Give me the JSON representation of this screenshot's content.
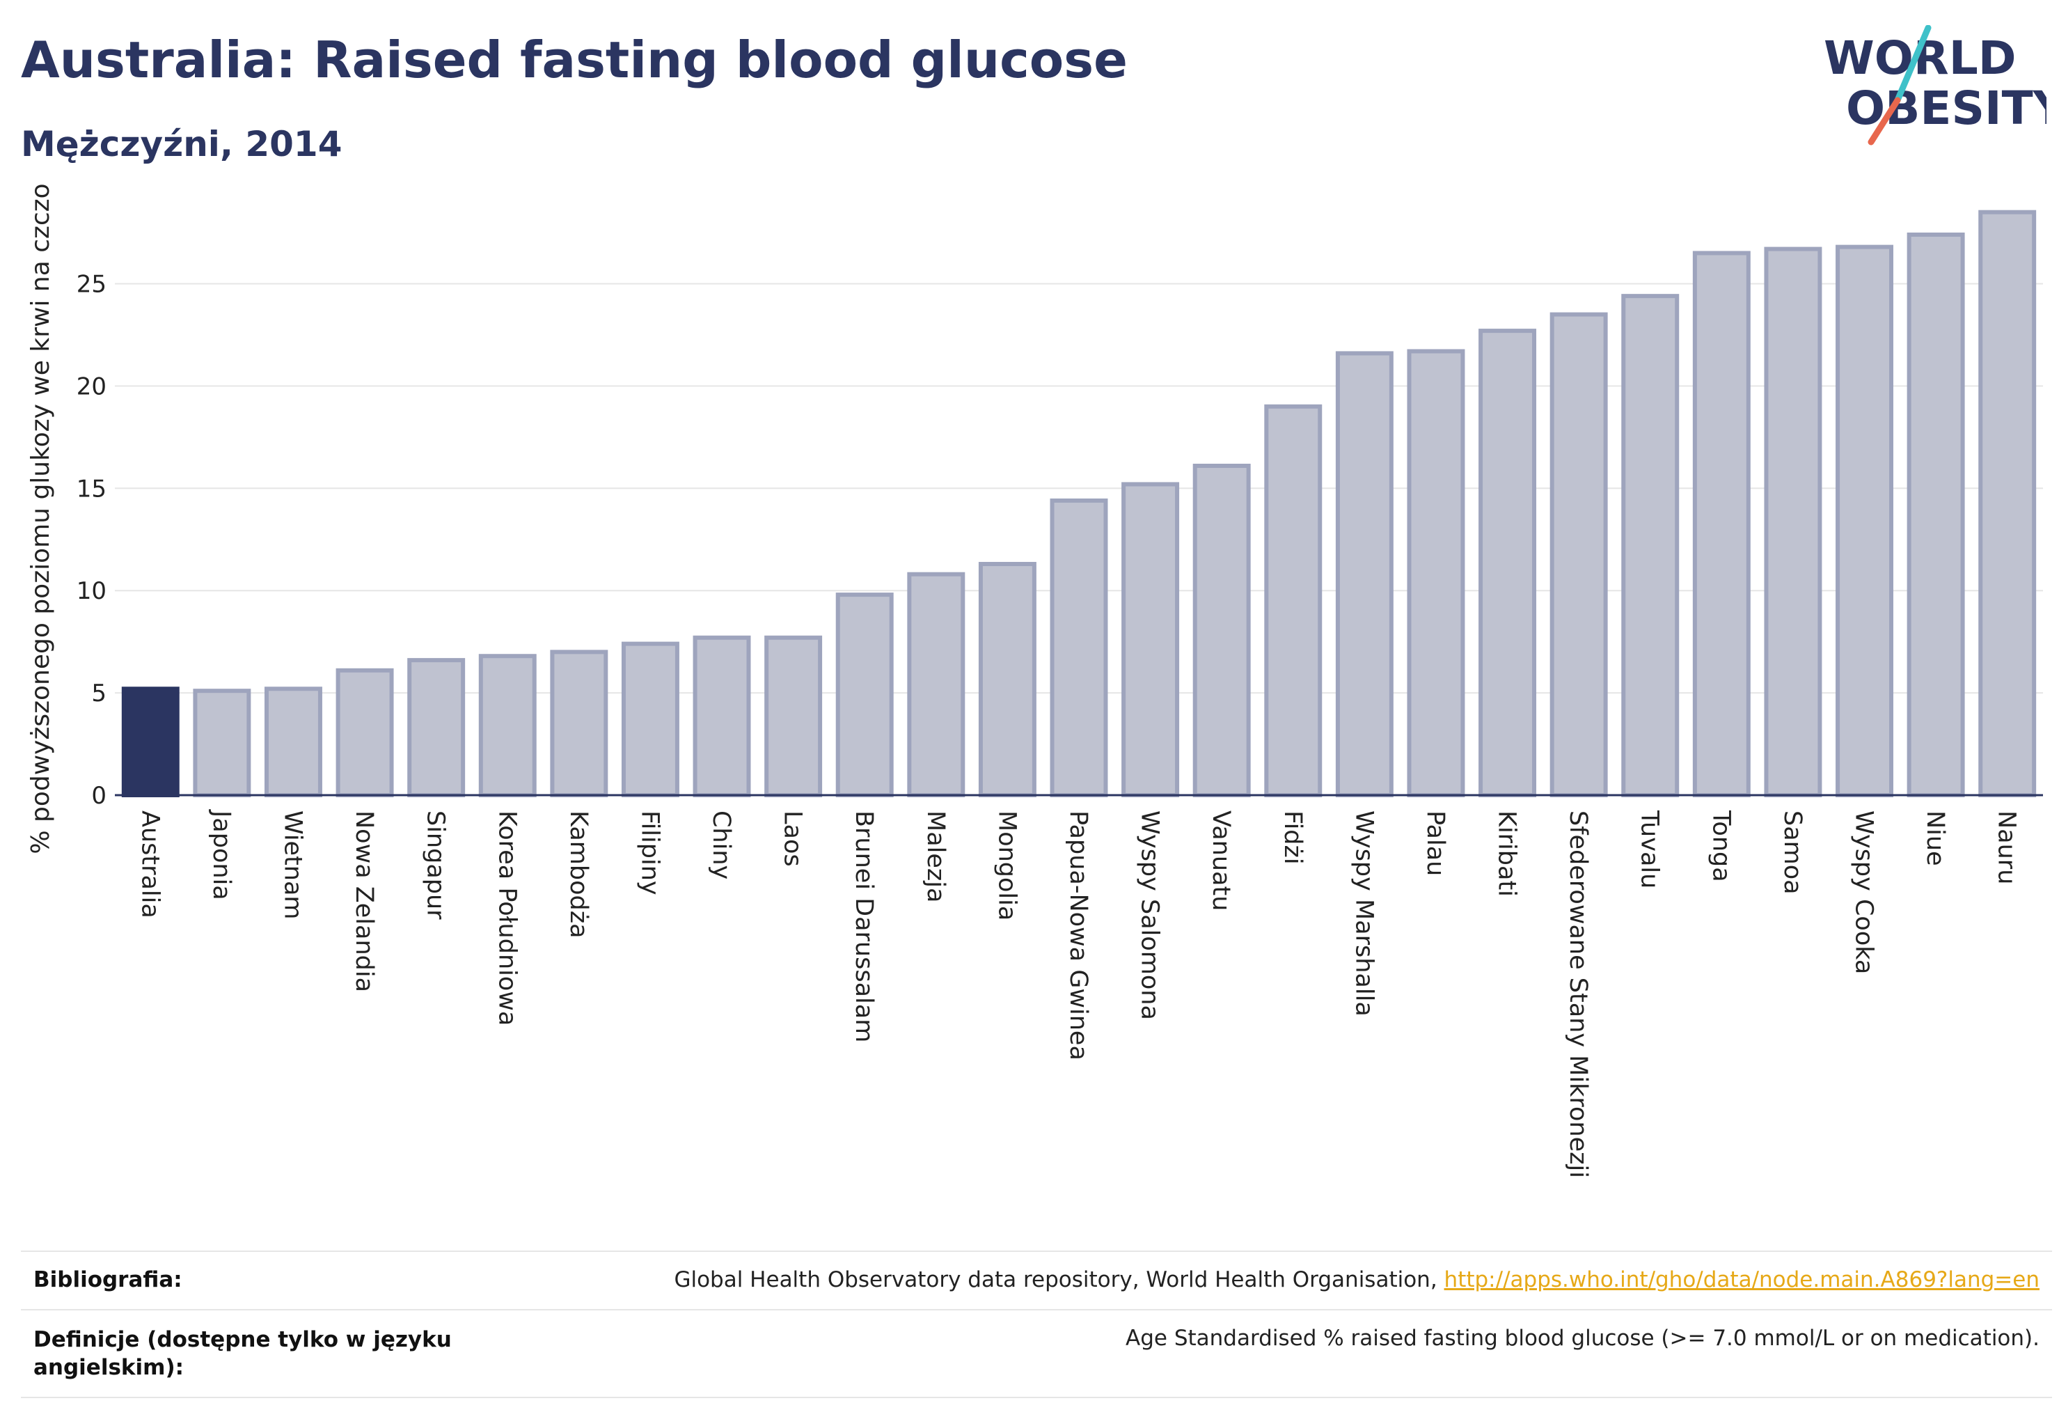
{
  "title": "Australia: Raised fasting blood glucose",
  "subtitle": "Mężczyźni, 2014",
  "logo": {
    "line1": "WORLD",
    "line2": "OBESITY",
    "text_color": "#2b3561",
    "slash_top": "#3fc1c9",
    "slash_bottom": "#e8674d"
  },
  "colors": {
    "highlight": "#2b3561",
    "bar_fill": "#bfc2d0",
    "bar_stroke": "#9ea4bd",
    "grid": "#e6e6e6",
    "axis": "#2b3561"
  },
  "chart_data": {
    "type": "bar",
    "ylabel": "% podwyższonego poziomu glukozy we krwi na czczo",
    "xlabel": "",
    "ylim": [
      0,
      29
    ],
    "yticks": [
      0,
      5,
      10,
      15,
      20,
      25
    ],
    "grid": true,
    "highlight_category": "Australia",
    "categories": [
      "Australia",
      "Japonia",
      "Wietnam",
      "Nowa Zelandia",
      "Singapur",
      "Korea Południowa",
      "Kambodża",
      "Filipiny",
      "Chiny",
      "Laos",
      "Brunei Darussalam",
      "Malezja",
      "Mongolia",
      "Papua-Nowa Gwinea",
      "Wyspy Salomona",
      "Vanuatu",
      "Fidżi",
      "Wyspy Marshalla",
      "Palau",
      "Kiribati",
      "Sfederowane Stany Mikronezji",
      "Tuvalu",
      "Tonga",
      "Samoa",
      "Wyspy Cooka",
      "Niue",
      "Nauru"
    ],
    "values": [
      5.2,
      5.1,
      5.2,
      6.1,
      6.6,
      6.8,
      7.0,
      7.4,
      7.7,
      7.7,
      9.8,
      10.8,
      11.3,
      14.4,
      15.2,
      16.1,
      19.0,
      21.6,
      21.7,
      22.7,
      23.5,
      24.4,
      26.5,
      26.7,
      26.8,
      27.4,
      28.5
    ]
  },
  "footer": {
    "bibliography_label": "Bibliografia:",
    "bibliography_text": "Global Health Observatory data repository, World Health Organisation, ",
    "bibliography_link": "http://apps.who.int/gho/data/node.main.A869?lang=en",
    "definitions_label": "Definicje (dostępne tylko w języku angielskim):",
    "definitions_text": "Age Standardised % raised fasting blood glucose (>= 7.0 mmol/L or on medication)."
  }
}
